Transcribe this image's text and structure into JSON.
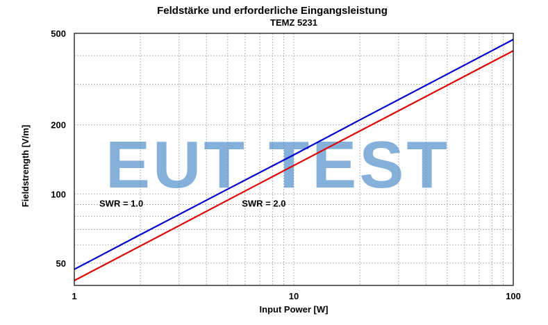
{
  "chart_data": {
    "type": "line",
    "title": "Feldstärke und erforderliche Eingangsleistung",
    "subtitle": "TEMZ 5231",
    "xlabel": "Input Power [W]",
    "ylabel": "Fieldstrength [V/m]",
    "x_scale": "log",
    "y_scale": "log",
    "xlim": [
      1,
      100
    ],
    "ylim": [
      40,
      500
    ],
    "x_ticks": [
      1,
      10,
      100
    ],
    "x_tick_labels": [
      "1",
      "10",
      "100"
    ],
    "y_ticks": [
      50,
      100,
      200,
      500
    ],
    "y_tick_labels": [
      "50",
      "100",
      "200",
      "500"
    ],
    "grid": true,
    "series": [
      {
        "x": [
          1,
          2,
          5,
          10,
          20,
          50,
          100
        ],
        "y": [
          47,
          66.5,
          105,
          148,
          210,
          332,
          470
        ],
        "color": "#0000cc"
      },
      {
        "x": [
          1,
          2,
          5,
          10,
          20,
          50,
          100
        ],
        "y": [
          42,
          59.4,
          94,
          133,
          188,
          297,
          420
        ],
        "color": "#dd0000"
      }
    ],
    "annotations": [
      {
        "text": "SWR = 1.0",
        "x": 1.3,
        "y": 88
      },
      {
        "text": "SWR = 2.0",
        "x": 5.8,
        "y": 88
      }
    ],
    "watermark": "EUT TEST"
  }
}
